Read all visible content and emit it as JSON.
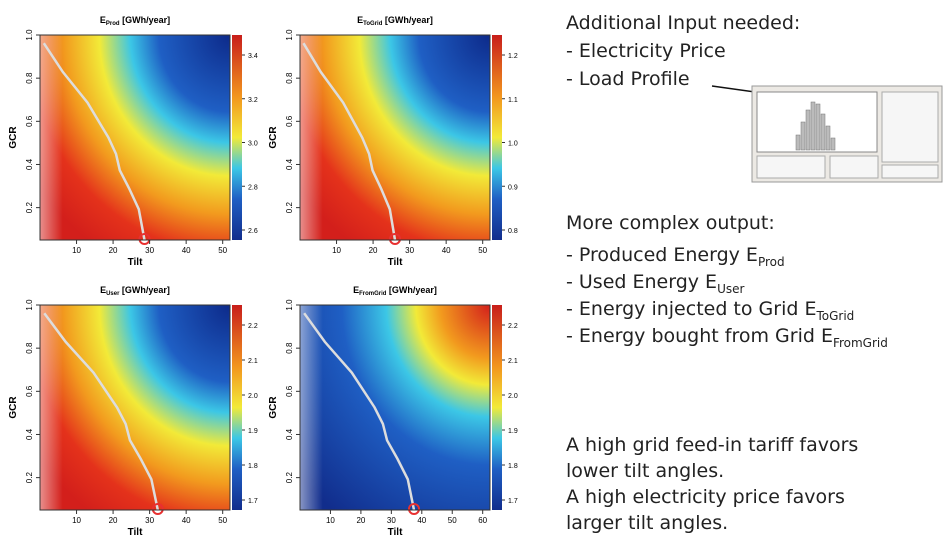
{
  "panels": [
    {
      "title_main": "E",
      "title_sub": "Prod",
      "title_unit": " [GWh/year]",
      "x_label": "Tilt",
      "y_label": "GCR",
      "x_ticks": [
        "10",
        "20",
        "30",
        "40",
        "50"
      ],
      "y_ticks": [
        "0.2",
        "0.4",
        "0.6",
        "0.8",
        "1.0"
      ],
      "colorbar_ticks": [
        "3.4",
        "3.2",
        "3.0",
        "2.8",
        "2.6"
      ]
    },
    {
      "title_main": "E",
      "title_sub": "ToGrid",
      "title_unit": " [GWh/year]",
      "x_label": "Tilt",
      "y_label": "GCR",
      "x_ticks": [
        "10",
        "20",
        "30",
        "40",
        "50"
      ],
      "y_ticks": [
        "0.2",
        "0.4",
        "0.6",
        "0.8",
        "1.0"
      ],
      "colorbar_ticks": [
        "1.2",
        "1.1",
        "1.0",
        "0.9",
        "0.8"
      ]
    },
    {
      "title_main": "E",
      "title_sub": "User",
      "title_unit": " [GWh/year]",
      "x_label": "Tilt",
      "y_label": "GCR",
      "x_ticks": [
        "10",
        "20",
        "30",
        "40",
        "50"
      ],
      "y_ticks": [
        "0.2",
        "0.4",
        "0.6",
        "0.8",
        "1.0"
      ],
      "colorbar_ticks": [
        "2.2",
        "2.1",
        "2.0",
        "1.9",
        "1.8",
        "1.7"
      ]
    },
    {
      "title_main": "E",
      "title_sub": "FromGrid",
      "title_unit": " [GWh/year]",
      "x_label": "Tilt",
      "y_label": "GCR",
      "x_ticks": [
        "10",
        "20",
        "30",
        "40",
        "50",
        "60"
      ],
      "y_ticks": [
        "0.2",
        "0.4",
        "0.6",
        "0.8",
        "1.0"
      ],
      "colorbar_ticks": [
        "2.2",
        "2.1",
        "2.0",
        "1.9",
        "1.8",
        "1.7"
      ]
    }
  ],
  "input": {
    "heading": "Additional Input needed:",
    "items": [
      "- Electricity Price",
      "- Load Profile"
    ]
  },
  "output": {
    "heading": "More complex output:",
    "items": [
      {
        "text": "- Produced Energy E",
        "sub": "Prod"
      },
      {
        "text": "- Used Energy E",
        "sub": "User"
      },
      {
        "text": "- Energy injected to Grid E",
        "sub": "ToGrid"
      },
      {
        "text": "- Energy bought from Grid E",
        "sub": "FromGrid"
      }
    ]
  },
  "notes": [
    "A high grid feed-in tariff favors",
    "lower tilt angles.",
    "A high electricity price favors",
    "larger tilt angles."
  ]
}
